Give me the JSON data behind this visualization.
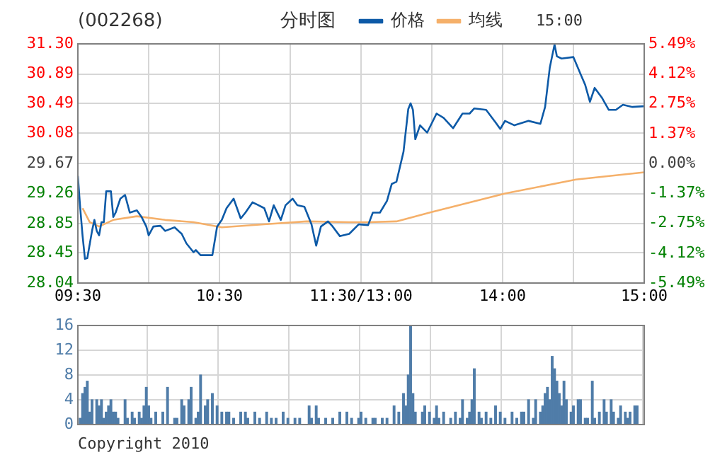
{
  "chart_data": [
    {
      "type": "line",
      "title": "(002268)",
      "subtitle": "分时图",
      "annotations": [
        "15:00"
      ],
      "legend": "top",
      "grid": true,
      "marker": "none",
      "categories": [
        "09:30",
        null,
        null,
        null,
        null,
        null,
        null,
        null,
        null,
        null,
        null,
        null,
        null,
        null,
        null,
        null,
        null,
        null,
        null,
        null,
        null,
        null,
        null,
        null,
        null,
        null,
        null,
        null,
        null,
        null,
        null,
        null,
        null,
        null,
        null,
        null,
        null,
        null,
        null,
        null,
        null,
        null,
        null,
        null,
        null,
        null,
        null,
        null,
        null,
        null,
        null,
        null,
        null,
        null,
        null,
        null,
        null,
        null,
        null,
        null,
        "10:30",
        null,
        null,
        null,
        null,
        null,
        null,
        null,
        null,
        null,
        null,
        null,
        null,
        null,
        null,
        null,
        null,
        null,
        null,
        null,
        null,
        null,
        null,
        null,
        null,
        null,
        null,
        null,
        null,
        null,
        null,
        null,
        null,
        null,
        null,
        null,
        null,
        null,
        null,
        null,
        null,
        null,
        null,
        null,
        null,
        null,
        null,
        null,
        null,
        null,
        null,
        null,
        null,
        null,
        null,
        null,
        null,
        null,
        null,
        null,
        "11:30/13:00",
        null,
        null,
        null,
        null,
        null,
        null,
        null,
        null,
        null,
        null,
        null,
        null,
        null,
        null,
        null,
        null,
        null,
        null,
        null,
        null,
        null,
        null,
        null,
        null,
        null,
        null,
        null,
        null,
        null,
        null,
        null,
        null,
        null,
        null,
        null,
        null,
        null,
        null,
        null,
        null,
        null,
        null,
        null,
        null,
        null,
        null,
        null,
        null,
        null,
        null,
        null,
        null,
        null,
        null,
        null,
        null,
        null,
        null,
        null,
        "14:00",
        null,
        null,
        null,
        null,
        null,
        null,
        null,
        null,
        null,
        null,
        null,
        null,
        null,
        null,
        null,
        null,
        null,
        null,
        null,
        null,
        null,
        null,
        null,
        null,
        null,
        null,
        null,
        null,
        null,
        null,
        null,
        null,
        null,
        null,
        null,
        null,
        null,
        null,
        null,
        null,
        null,
        null,
        null,
        null,
        null,
        null,
        null,
        null,
        null,
        null,
        null,
        null,
        null,
        null,
        null,
        null,
        null,
        null,
        null,
        "15:00"
      ],
      "ylim": [
        28.04,
        31.3
      ],
      "yticks": [
        28.04,
        28.45,
        28.85,
        29.26,
        29.67,
        30.08,
        30.49,
        30.89,
        {
          "value": 31.3,
          "label": "31.30"
        }
      ],
      "y2lim": [
        -5.49,
        5.49
      ],
      "y2ticks": [
        {
          "value": -5.49,
          "label": "-5.49%"
        },
        {
          "value": -4.12,
          "label": "-4.12%"
        },
        {
          "value": -2.75,
          "label": "-2.75%"
        },
        {
          "value": -1.37,
          "label": "-1.37%"
        },
        {
          "value": 0,
          "label": "0.00%"
        },
        {
          "value": 1.37,
          "label": "1.37%"
        },
        {
          "value": 2.75,
          "label": "2.75%"
        },
        {
          "value": 4.12,
          "label": "4.12%"
        },
        {
          "value": 5.49,
          "label": "5.49%"
        }
      ],
      "series": [
        {
          "name": "价格",
          "color": "#0d5aa7",
          "values": [
            29.5,
            29.06,
            28.68,
            28.37,
            28.38,
            null,
            28.75,
            28.9,
            28.75,
            28.69,
            28.87,
            28.87,
            29.29,
            null,
            29.29,
            28.94,
            29.0,
            null,
            29.19,
            null,
            29.24,
            null,
            29.0,
            null,
            null,
            29.03,
            null,
            28.94,
            null,
            28.81,
            28.69,
            null,
            28.81,
            null,
            null,
            28.82,
            null,
            28.75,
            null,
            null,
            null,
            28.8,
            null,
            null,
            28.71,
            null,
            28.58,
            null,
            null,
            28.46,
            28.49,
            null,
            28.42,
            null,
            null,
            null,
            null,
            28.42,
            null,
            28.81,
            null,
            28.9,
            null,
            29.06,
            null,
            null,
            29.19,
            null,
            null,
            28.92,
            null,
            29.0,
            null,
            null,
            29.14,
            null,
            29.11,
            null,
            null,
            29.06,
            null,
            28.88,
            null,
            29.1,
            null,
            null,
            28.9,
            null,
            29.1,
            null,
            null,
            29.19,
            null,
            29.1,
            null,
            null,
            29.08,
            null,
            null,
            28.84,
            null,
            28.55,
            null,
            28.81,
            null,
            null,
            28.88,
            null,
            28.81,
            null,
            null,
            28.68,
            null,
            null,
            null,
            28.71,
            null,
            null,
            null,
            28.84,
            null,
            null,
            null,
            28.83,
            null,
            29.0,
            null,
            null,
            29.0,
            null,
            null,
            29.16,
            null,
            29.39,
            null,
            29.42,
            null,
            null,
            29.83,
            null,
            30.41,
            30.49,
            30.4,
            30.0,
            null,
            30.19,
            null,
            null,
            30.09,
            null,
            null,
            null,
            30.35,
            null,
            null,
            30.29,
            null,
            null,
            null,
            30.15,
            null,
            null,
            null,
            30.35,
            null,
            null,
            30.35,
            null,
            30.42,
            null,
            null,
            null,
            null,
            30.4,
            null,
            null,
            null,
            30.23,
            null,
            30.14,
            null,
            30.25,
            null,
            null,
            null,
            30.19,
            null,
            null,
            null,
            null,
            null,
            30.25,
            null,
            null,
            null,
            null,
            30.21,
            null,
            30.44,
            null,
            30.98,
            null,
            31.29,
            31.13,
            null,
            31.1,
            null,
            null,
            null,
            null,
            31.12,
            null,
            null,
            30.89,
            null,
            30.74,
            null,
            30.51,
            null,
            30.7,
            null,
            null,
            30.57,
            null,
            null,
            30.4,
            null,
            null,
            30.4,
            null,
            null,
            30.47,
            null,
            null,
            null,
            30.44,
            null,
            null,
            null,
            null,
            30.45
          ]
        },
        {
          "name": "均线",
          "color": "#f5b06a",
          "values": [
            null,
            null,
            29.06,
            null,
            null,
            28.87,
            null,
            null,
            null,
            28.81,
            null,
            null,
            null,
            null,
            null,
            28.9,
            null,
            null,
            null,
            null,
            null,
            null,
            null,
            null,
            null,
            28.95,
            null,
            null,
            null,
            null,
            null,
            null,
            null,
            null,
            null,
            null,
            null,
            28.9,
            null,
            null,
            null,
            null,
            null,
            null,
            null,
            null,
            null,
            null,
            null,
            28.87,
            null,
            null,
            null,
            null,
            null,
            null,
            null,
            null,
            null,
            null,
            null,
            28.8,
            null,
            null,
            null,
            null,
            null,
            null,
            null,
            null,
            null,
            null,
            null,
            null,
            null,
            null,
            null,
            null,
            null,
            28.84,
            null,
            null,
            null,
            null,
            null,
            null,
            null,
            null,
            null,
            null,
            null,
            null,
            null,
            null,
            null,
            null,
            null,
            28.88,
            null,
            null,
            null,
            null,
            null,
            null,
            null,
            null,
            null,
            null,
            null,
            null,
            null,
            null,
            null,
            null,
            null,
            28.87,
            null,
            null,
            null,
            null,
            null,
            null,
            null,
            28.87,
            null,
            null,
            null,
            null,
            null,
            null,
            null,
            null,
            null,
            null,
            null,
            28.88,
            null,
            null,
            null,
            null,
            null,
            null,
            null,
            null,
            null,
            null,
            null,
            null,
            null,
            29.0,
            null,
            null,
            null,
            null,
            null,
            null,
            null,
            null,
            null,
            null,
            null,
            null,
            null,
            null,
            null,
            null,
            null,
            null,
            null,
            null,
            null,
            null,
            null,
            null,
            null,
            null,
            null,
            null,
            null,
            null,
            null,
            29.26,
            null,
            null,
            null,
            null,
            null,
            null,
            null,
            null,
            null,
            null,
            null,
            null,
            null,
            null,
            null,
            null,
            null,
            null,
            null,
            null,
            null,
            null,
            null,
            null,
            null,
            null,
            null,
            null,
            null,
            29.45,
            null,
            null,
            null,
            null,
            null,
            null,
            null,
            null,
            null,
            null,
            null,
            null,
            null,
            null,
            null,
            null,
            null,
            null,
            null,
            null,
            null,
            null,
            null,
            null,
            null,
            null,
            null,
            null,
            29.55
          ]
        }
      ]
    },
    {
      "type": "bar",
      "annotations": [
        "Copyright 2010"
      ],
      "grid": true,
      "categories": [
        null,
        null,
        null,
        null,
        null,
        null,
        null,
        null,
        null,
        null,
        null,
        null,
        null,
        null,
        null,
        null,
        null,
        null,
        null,
        null,
        null,
        null,
        null,
        null,
        null,
        null,
        null,
        null,
        null,
        null,
        null,
        null,
        null,
        null,
        null,
        null,
        null,
        null,
        null,
        null,
        null,
        null,
        null,
        null,
        null,
        null,
        null,
        null,
        null,
        null,
        null,
        null,
        null,
        null,
        null,
        null,
        null,
        null,
        null,
        null,
        null,
        null,
        null,
        null,
        null,
        null,
        null,
        null,
        null,
        null,
        null,
        null,
        null,
        null,
        null,
        null,
        null,
        null,
        null,
        null,
        null,
        null,
        null,
        null,
        null,
        null,
        null,
        null,
        null,
        null,
        null,
        null,
        null,
        null,
        null,
        null,
        null,
        null,
        null,
        null,
        null,
        null,
        null,
        null,
        null,
        null,
        null,
        null,
        null,
        null,
        null,
        null,
        null,
        null,
        null,
        null,
        null,
        null,
        null,
        null,
        null,
        null,
        null,
        null,
        null,
        null,
        null,
        null,
        null,
        null,
        null,
        null,
        null,
        null,
        null,
        null,
        null,
        null,
        null,
        null,
        null,
        null,
        null,
        null,
        null,
        null,
        null,
        null,
        null,
        null,
        null,
        null,
        null,
        null,
        null,
        null,
        null,
        null,
        null,
        null,
        null,
        null,
        null,
        null,
        null,
        null,
        null,
        null,
        null,
        null,
        null,
        null,
        null,
        null,
        null,
        null,
        null,
        null,
        null,
        null,
        null,
        null,
        null,
        null,
        null,
        null,
        null,
        null,
        null,
        null,
        null,
        null,
        null,
        null,
        null,
        null,
        null,
        null,
        null,
        null,
        null,
        null,
        null,
        null,
        null,
        null,
        null,
        null,
        null,
        null,
        null,
        null,
        null,
        null,
        null,
        null,
        null,
        null,
        null,
        null,
        null,
        null,
        null,
        null,
        null,
        null,
        null,
        null,
        null,
        null,
        null,
        null,
        null,
        null,
        null,
        null,
        null,
        null,
        null,
        null,
        null
      ],
      "ylim": [
        0,
        16
      ],
      "yticks": [
        0,
        4,
        8,
        12,
        16
      ],
      "series": [
        {
          "color": "#4f7ca8",
          "values": [
            null,
            1,
            5,
            6,
            7,
            2,
            4,
            null,
            4,
            3,
            4,
            1,
            2,
            3,
            4,
            2,
            2,
            1,
            null,
            null,
            4,
            1,
            null,
            2,
            1,
            null,
            2,
            1,
            3,
            6,
            3,
            1,
            null,
            2,
            null,
            null,
            2,
            null,
            6,
            null,
            null,
            1,
            1,
            null,
            4,
            3,
            null,
            4,
            6,
            null,
            1,
            2,
            8,
            null,
            3,
            4,
            null,
            5,
            null,
            3,
            null,
            2,
            null,
            2,
            2,
            null,
            1,
            null,
            null,
            2,
            null,
            2,
            1,
            null,
            null,
            2,
            null,
            1,
            null,
            null,
            2,
            null,
            1,
            null,
            1,
            null,
            null,
            2,
            null,
            1,
            null,
            null,
            1,
            null,
            1,
            null,
            null,
            null,
            3,
            1,
            null,
            3,
            1,
            null,
            null,
            1,
            null,
            null,
            1,
            null,
            null,
            2,
            null,
            null,
            2,
            null,
            1,
            null,
            null,
            1,
            2,
            null,
            1,
            null,
            null,
            1,
            1,
            null,
            null,
            1,
            null,
            1,
            null,
            null,
            3,
            null,
            2,
            null,
            5,
            3,
            8,
            16,
            5,
            2,
            null,
            null,
            2,
            3,
            null,
            2,
            null,
            1,
            3,
            1,
            null,
            2,
            null,
            null,
            1,
            null,
            2,
            null,
            1,
            4,
            null,
            1,
            2,
            4,
            9,
            null,
            2,
            1,
            null,
            2,
            null,
            1,
            null,
            3,
            null,
            2,
            null,
            1,
            null,
            null,
            2,
            null,
            1,
            null,
            2,
            2,
            null,
            4,
            null,
            1,
            4,
            null,
            2,
            3,
            5,
            6,
            4,
            11,
            9,
            7,
            5,
            3,
            7,
            4,
            null,
            2,
            3,
            null,
            4,
            4,
            null,
            1,
            1,
            null,
            7,
            1,
            null,
            2,
            null,
            4,
            2,
            null,
            4,
            2,
            null,
            1,
            3,
            null,
            2,
            1,
            2,
            null,
            3,
            3,
            null,
            null,
            null
          ]
        }
      ]
    }
  ]
}
